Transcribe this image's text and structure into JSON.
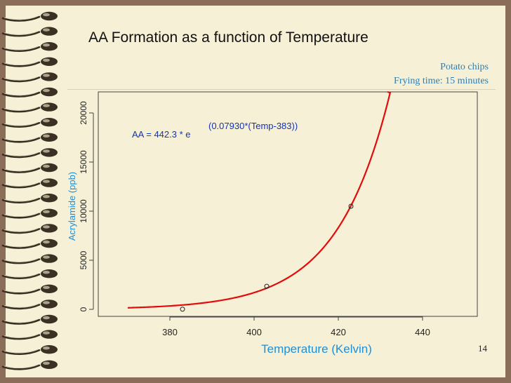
{
  "slide": {
    "title": "AA Formation as a function of Temperature",
    "note_line1": "Potato chips",
    "note_line2": "Frying time: 15 minutes",
    "page_number": "14"
  },
  "chart_data": {
    "type": "scatter",
    "xlabel": "Temperature (Kelvin)",
    "ylabel": "Acrylamide (ppb)",
    "xlim": [
      363,
      453
    ],
    "ylim": [
      -600,
      21000
    ],
    "x_ticks": [
      380,
      400,
      420,
      440
    ],
    "y_ticks": [
      0,
      5000,
      10000,
      15000,
      20000
    ],
    "points": [
      {
        "x": 383,
        "y": 20
      },
      {
        "x": 403,
        "y": 2350
      },
      {
        "x": 423,
        "y": 10500
      }
    ],
    "fit": {
      "a": 442.3,
      "b": 0.0793,
      "x0": 383,
      "x_start": 370,
      "x_end": 440
    },
    "equation": {
      "base": "AA = 442.3 * e",
      "exponent": "(0.07930*(Temp-383))"
    },
    "colors": {
      "curve": "#e30b0b",
      "axis_label": "#1f8fd6",
      "equation": "#1533b2",
      "tick": "#222222"
    }
  }
}
